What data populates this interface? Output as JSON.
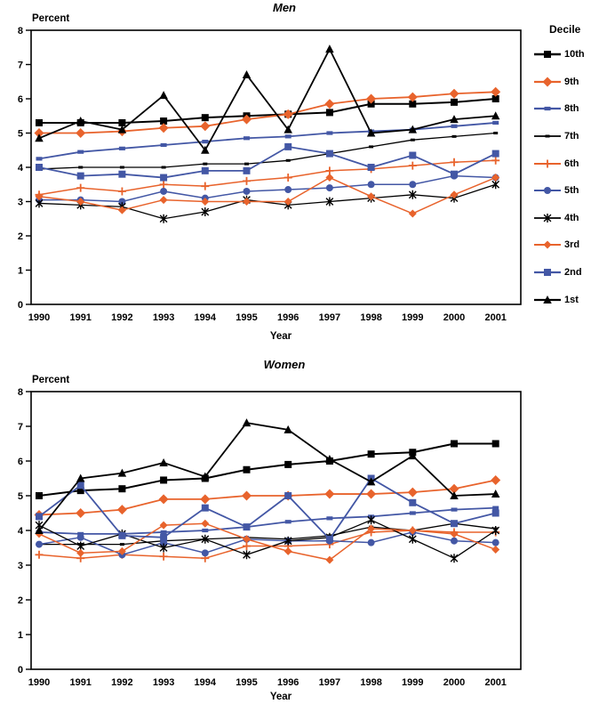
{
  "page_background": "#ffffff",
  "colors": {
    "black": "#000000",
    "orange": "#E8632C",
    "blue": "#4357A5"
  },
  "legend": {
    "title": "Decile",
    "position": "right"
  },
  "series_styles": [
    {
      "name": "10th",
      "color": "black",
      "marker": "square",
      "ms": 8,
      "lw": 2.0
    },
    {
      "name": "9th",
      "color": "orange",
      "marker": "diamond",
      "ms": 9,
      "lw": 1.8
    },
    {
      "name": "8th",
      "color": "blue",
      "marker": "dash",
      "ms": 7,
      "lw": 1.8
    },
    {
      "name": "7th",
      "color": "black",
      "marker": "dash",
      "ms": 5,
      "lw": 1.3
    },
    {
      "name": "6th",
      "color": "orange",
      "marker": "plus",
      "ms": 9,
      "lw": 1.5
    },
    {
      "name": "5th",
      "color": "blue",
      "marker": "circle",
      "ms": 8,
      "lw": 1.5
    },
    {
      "name": "4th",
      "color": "black",
      "marker": "asterisk",
      "ms": 10,
      "lw": 1.3
    },
    {
      "name": "3rd",
      "color": "orange",
      "marker": "diamond",
      "ms": 7,
      "lw": 1.5
    },
    {
      "name": "2nd",
      "color": "blue",
      "marker": "square",
      "ms": 8,
      "lw": 1.8
    },
    {
      "name": "1st",
      "color": "black",
      "marker": "triangle",
      "ms": 10,
      "lw": 1.8
    }
  ],
  "chart_data": [
    {
      "type": "line",
      "title": "Men",
      "ylabel": "Percent",
      "xlabel": "Year",
      "ylim": [
        0,
        8
      ],
      "yticks": [
        0,
        1,
        2,
        3,
        4,
        5,
        6,
        7,
        8
      ],
      "grid": false,
      "legend_position": "right",
      "categories": [
        1990,
        1991,
        1992,
        1993,
        1994,
        1995,
        1996,
        1997,
        1998,
        1999,
        2000,
        2001
      ],
      "series": [
        {
          "name": "10th",
          "values": [
            5.3,
            5.3,
            5.3,
            5.35,
            5.45,
            5.5,
            5.55,
            5.6,
            5.85,
            5.85,
            5.9,
            6.0
          ]
        },
        {
          "name": "9th",
          "values": [
            5.0,
            5.0,
            5.05,
            5.15,
            5.2,
            5.4,
            5.55,
            5.85,
            6.0,
            6.05,
            6.15,
            6.2
          ]
        },
        {
          "name": "8th",
          "values": [
            4.25,
            4.45,
            4.55,
            4.65,
            4.75,
            4.85,
            4.9,
            5.0,
            5.05,
            5.1,
            5.2,
            5.3
          ]
        },
        {
          "name": "7th",
          "values": [
            3.95,
            4.0,
            4.0,
            4.0,
            4.1,
            4.1,
            4.2,
            4.4,
            4.6,
            4.8,
            4.9,
            5.0
          ]
        },
        {
          "name": "6th",
          "values": [
            3.2,
            3.4,
            3.3,
            3.5,
            3.45,
            3.6,
            3.7,
            3.9,
            3.95,
            4.05,
            4.15,
            4.2
          ]
        },
        {
          "name": "5th",
          "values": [
            3.05,
            3.05,
            3.0,
            3.3,
            3.1,
            3.3,
            3.35,
            3.4,
            3.5,
            3.5,
            3.75,
            3.7
          ]
        },
        {
          "name": "4th",
          "values": [
            2.95,
            2.9,
            2.85,
            2.5,
            2.7,
            3.05,
            2.9,
            3.0,
            3.1,
            3.2,
            3.1,
            3.5
          ]
        },
        {
          "name": "3rd",
          "values": [
            3.15,
            3.0,
            2.75,
            3.05,
            3.0,
            3.0,
            3.0,
            3.7,
            3.15,
            2.65,
            3.2,
            3.7
          ]
        },
        {
          "name": "2nd",
          "values": [
            4.0,
            3.75,
            3.8,
            3.7,
            3.9,
            3.9,
            4.6,
            4.4,
            4.0,
            4.35,
            3.8,
            4.4
          ]
        },
        {
          "name": "1st",
          "values": [
            4.85,
            5.35,
            5.1,
            6.1,
            4.5,
            6.7,
            5.1,
            7.45,
            5.0,
            5.1,
            5.4,
            5.5
          ]
        }
      ]
    },
    {
      "type": "line",
      "title": "Women",
      "ylabel": "Percent",
      "xlabel": "Year",
      "ylim": [
        0,
        8
      ],
      "yticks": [
        0,
        1,
        2,
        3,
        4,
        5,
        6,
        7,
        8
      ],
      "grid": false,
      "legend_position": "right",
      "categories": [
        1990,
        1991,
        1992,
        1993,
        1994,
        1995,
        1996,
        1997,
        1998,
        1999,
        2000,
        2001
      ],
      "series": [
        {
          "name": "10th",
          "values": [
            5.0,
            5.15,
            5.2,
            5.45,
            5.5,
            5.75,
            5.9,
            6.0,
            6.2,
            6.25,
            6.5,
            6.5
          ]
        },
        {
          "name": "9th",
          "values": [
            4.45,
            4.5,
            4.6,
            4.9,
            4.9,
            5.0,
            5.0,
            5.05,
            5.05,
            5.1,
            5.2,
            5.45
          ]
        },
        {
          "name": "8th",
          "values": [
            3.95,
            3.9,
            3.9,
            3.95,
            4.0,
            4.1,
            4.25,
            4.35,
            4.4,
            4.5,
            4.6,
            4.65
          ]
        },
        {
          "name": "7th",
          "values": [
            3.6,
            3.6,
            3.6,
            3.7,
            3.75,
            3.8,
            3.75,
            3.85,
            4.1,
            4.0,
            4.2,
            4.05
          ]
        },
        {
          "name": "6th",
          "values": [
            3.3,
            3.2,
            3.3,
            3.25,
            3.2,
            3.55,
            3.55,
            3.6,
            3.95,
            4.0,
            3.95,
            3.95
          ]
        },
        {
          "name": "5th",
          "values": [
            3.6,
            3.8,
            3.3,
            3.65,
            3.35,
            3.75,
            3.7,
            3.7,
            3.65,
            3.95,
            3.7,
            3.65
          ]
        },
        {
          "name": "4th",
          "values": [
            4.15,
            3.55,
            3.9,
            3.5,
            3.75,
            3.3,
            3.7,
            3.8,
            4.3,
            3.75,
            3.2,
            4.0
          ]
        },
        {
          "name": "3rd",
          "values": [
            3.9,
            3.35,
            3.4,
            4.15,
            4.2,
            3.75,
            3.4,
            3.15,
            4.05,
            4.0,
            3.9,
            3.45
          ]
        },
        {
          "name": "2nd",
          "values": [
            4.4,
            5.3,
            3.85,
            3.8,
            4.65,
            4.1,
            5.0,
            3.75,
            5.5,
            4.8,
            4.2,
            4.5
          ]
        },
        {
          "name": "1st",
          "values": [
            4.0,
            5.5,
            5.65,
            5.95,
            5.55,
            7.1,
            6.9,
            6.05,
            5.4,
            6.15,
            5.0,
            5.05
          ]
        }
      ]
    }
  ]
}
